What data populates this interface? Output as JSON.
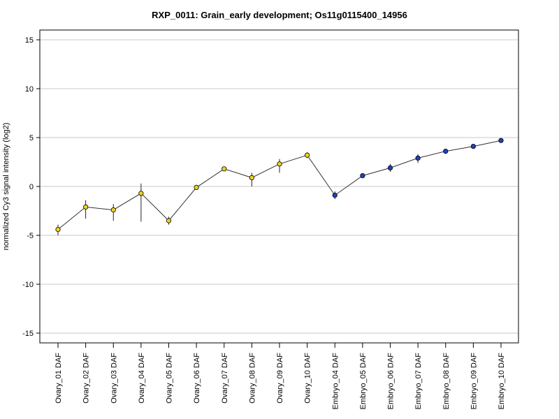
{
  "chart_data": {
    "type": "line",
    "title": "RXP_0011: Grain_early development; Os11g0115400_14956",
    "xlabel": "",
    "ylabel": "normalized Cy3 signal intensity (log2)",
    "ylim": [
      -16,
      16
    ],
    "yticks": [
      -15,
      -10,
      -5,
      0,
      5,
      10,
      15
    ],
    "ytick_labels": [
      "-15",
      "-10",
      "-5",
      "0",
      "5",
      "10",
      "15"
    ],
    "grid": "horizontal",
    "categories": [
      "Ovary_01 DAF",
      "Ovary_02 DAF",
      "Ovary_03 DAF",
      "Ovary_04 DAF",
      "Ovary_05 DAF",
      "Ovary_06 DAF",
      "Ovary_07 DAF",
      "Ovary_08 DAF",
      "Ovary_09 DAF",
      "Ovary_10 DAF",
      "Embryo_04 DAF",
      "Embryo_05 DAF",
      "Embryo_06 DAF",
      "Embryo_07 DAF",
      "Embryo_08 DAF",
      "Embryo_09 DAF",
      "Embryo_10 DAF"
    ],
    "values": [
      -4.4,
      -2.1,
      -2.4,
      -0.7,
      -3.5,
      -0.1,
      1.8,
      0.9,
      2.3,
      3.2,
      -0.9,
      1.1,
      1.9,
      2.9,
      3.6,
      4.1,
      4.7
    ],
    "error_low": [
      -5.0,
      -3.3,
      -3.5,
      -3.6,
      -3.9,
      -0.3,
      1.6,
      0.0,
      1.4,
      2.9,
      -1.3,
      1.0,
      1.5,
      2.4,
      3.5,
      4.0,
      4.6
    ],
    "error_high": [
      -3.9,
      -1.4,
      -1.8,
      0.3,
      -3.1,
      0.1,
      2.0,
      1.4,
      2.8,
      3.5,
      -0.5,
      1.2,
      2.3,
      3.3,
      3.7,
      4.2,
      4.8
    ],
    "point_colors": [
      "#f0d020",
      "#f0d020",
      "#f0d020",
      "#f0d020",
      "#f0d020",
      "#f0d020",
      "#f0d020",
      "#f0d020",
      "#f0d020",
      "#f0d020",
      "#2040c0",
      "#2040c0",
      "#2040c0",
      "#2040c0",
      "#2040c0",
      "#2040c0",
      "#2040c0"
    ],
    "colors": {
      "ovary": "#f0d020",
      "embryo": "#2040c0",
      "line": "#333333",
      "grid": "#c8c8c8",
      "axis": "#000000"
    }
  }
}
